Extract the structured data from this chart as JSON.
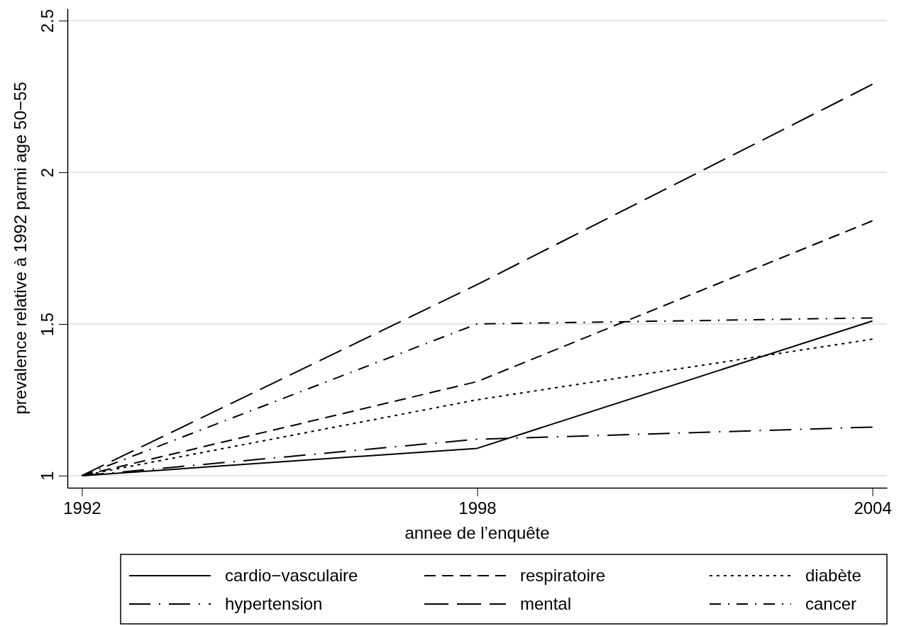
{
  "chart_data": {
    "type": "line",
    "xlabel": "annee de l’enquête",
    "ylabel": "prevalence relative à 1992 parmi age 50−55",
    "x": [
      1992,
      1998,
      2004
    ],
    "xlim": [
      1991.78,
      2004.22
    ],
    "xticks": [
      1992,
      1998,
      2004
    ],
    "ylim": [
      0.96,
      2.54
    ],
    "yticks": [
      1,
      1.5,
      2,
      2.5
    ],
    "grid": "y",
    "legend": "bottom",
    "series": [
      {
        "name": "cardio−vasculaire",
        "color": "#000000",
        "line_style": "solid",
        "values": [
          1,
          1.09,
          1.51
        ]
      },
      {
        "name": "respiratoire",
        "color": "#000000",
        "line_style": "dashed",
        "values": [
          1,
          1.31,
          1.84
        ]
      },
      {
        "name": "diabète",
        "color": "#000000",
        "line_style": "dotted",
        "values": [
          1,
          1.25,
          1.45
        ]
      },
      {
        "name": "hypertension",
        "color": "#000000",
        "line_style": "longdashdot",
        "values": [
          1,
          1.12,
          1.16
        ]
      },
      {
        "name": "mental",
        "color": "#000000",
        "line_style": "longdash",
        "values": [
          1,
          1.63,
          2.29
        ]
      },
      {
        "name": "cancer",
        "color": "#000000",
        "line_style": "dashdot",
        "values": [
          1,
          1.5,
          1.52
        ]
      }
    ]
  }
}
